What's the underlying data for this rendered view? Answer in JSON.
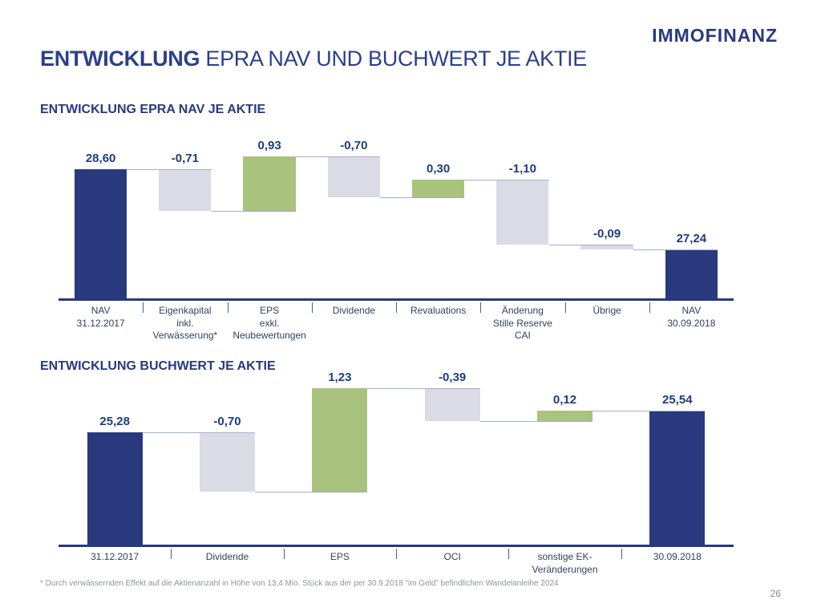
{
  "logo": "IMMOFINANZ",
  "title": {
    "bold": "ENTWICKLUNG",
    "rest": " EPRA NAV UND BUCHWERT JE AKTIE"
  },
  "page_number": "26",
  "footnote": "* Durch verwässernden Effekt auf die Aktienanzahl in Höhe von 13,4 Mio. Stück aus der per 30.9.2018 “im Geld” befindlichen Wandelanleihe 2024",
  "colors": {
    "navy": "#283A7D",
    "green": "#A9C27E",
    "gray_light": "#DBDBE6",
    "connector": "#A3AED2",
    "axis": "#28397B",
    "value_label": "#1E3C80",
    "heading": "#27397E"
  },
  "chart_data": [
    {
      "type": "bar",
      "subtype": "waterfall",
      "title": "ENTWICKLUNG EPRA NAV JE AKTIE",
      "categories": [
        "NAV\n31.12.2017",
        "Eigenkapital\ninkl.\nVerwässerung*",
        "EPS\nexkl.\nNeubewertungen",
        "Dividende",
        "Revaluations",
        "Änderung\nStille Reserve\nCAI",
        "Übrige",
        "NAV\n30.09.2018"
      ],
      "values": [
        28.6,
        -0.71,
        0.93,
        -0.7,
        0.3,
        -1.1,
        -0.09,
        27.24
      ],
      "labels": [
        "28,60",
        "-0,71",
        "0,93",
        "-0,70",
        "0,30",
        "-1,10",
        "-0,09",
        "27,24"
      ],
      "roles": [
        "total",
        "delta",
        "delta",
        "delta",
        "delta",
        "delta",
        "delta",
        "total"
      ],
      "ylim": [
        26.4,
        29.3
      ],
      "grid": false,
      "legend": false
    },
    {
      "type": "bar",
      "subtype": "waterfall",
      "title": "ENTWICKLUNG BUCHWERT JE AKTIE",
      "categories": [
        "31.12.2017",
        "Dividende",
        "EPS",
        "OCI",
        "sonstige EK-\nVeränderungen",
        "30.09.2018"
      ],
      "values": [
        25.28,
        -0.7,
        1.23,
        -0.39,
        0.12,
        25.54
      ],
      "labels": [
        "25,28",
        "-0,70",
        "1,23",
        "-0,39",
        "0,12",
        "25,54"
      ],
      "roles": [
        "total",
        "delta",
        "delta",
        "delta",
        "delta",
        "total"
      ],
      "ylim": [
        23.95,
        25.94
      ],
      "grid": false,
      "legend": false
    }
  ]
}
